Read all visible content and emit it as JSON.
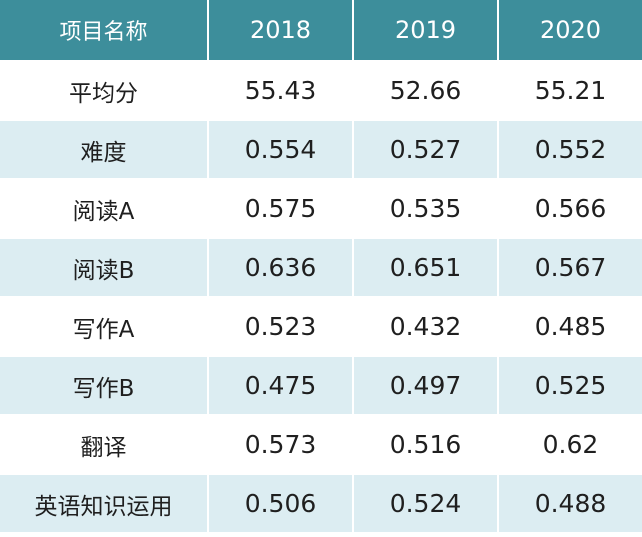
{
  "table": {
    "headers": [
      "项目名称",
      "2018",
      "2019",
      "2020"
    ],
    "rows": [
      [
        "平均分",
        "55.43",
        "52.66",
        "55.21"
      ],
      [
        "难度",
        "0.554",
        "0.527",
        "0.552"
      ],
      [
        "阅读A",
        "0.575",
        "0.535",
        "0.566"
      ],
      [
        "阅读B",
        "0.636",
        "0.651",
        "0.567"
      ],
      [
        "写作A",
        "0.523",
        "0.432",
        "0.485"
      ],
      [
        "写作B",
        "0.475",
        "0.497",
        "0.525"
      ],
      [
        "翻译",
        "0.573",
        "0.516",
        "0.62"
      ],
      [
        "英语知识运用",
        "0.506",
        "0.524",
        "0.488"
      ]
    ]
  },
  "colors": {
    "header_bg": "#3d8e9b",
    "header_text": "#ffffff",
    "row_odd_bg": "#ffffff",
    "row_even_bg": "#dcedf2",
    "body_text": "#1f1f1f"
  }
}
